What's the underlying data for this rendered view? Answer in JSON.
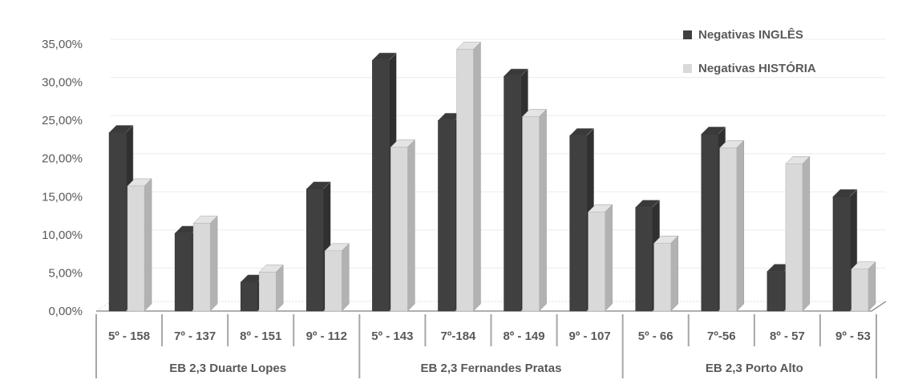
{
  "chart_data": {
    "type": "bar",
    "title": "",
    "xlabel": "",
    "ylabel": "",
    "ylim": [
      0,
      35
    ],
    "yticks": [
      "0,00%",
      "5,00%",
      "10,00%",
      "15,00%",
      "20,00%",
      "25,00%",
      "30,00%",
      "35,00%"
    ],
    "grid": true,
    "legend_position": "top-right",
    "categories": [
      "5º - 158",
      "7º - 137",
      "8º - 151",
      "9º - 112",
      "5º - 143",
      "7º-184",
      "8º - 149",
      "9º - 107",
      "5º - 66",
      "7º-56",
      "8º - 57",
      "9º - 53"
    ],
    "groups": [
      {
        "label": "EB 2,3 Duarte Lopes",
        "span": 4
      },
      {
        "label": "EB 2,3 Fernandes Pratas",
        "span": 4
      },
      {
        "label": "EB 2,3 Porto Alto",
        "span": 4
      }
    ],
    "series": [
      {
        "name": "Negativas INGLÊS",
        "color": "#404040",
        "values": [
          23.4,
          10.2,
          3.8,
          16.0,
          32.9,
          25.0,
          30.8,
          23.0,
          13.6,
          23.2,
          5.2,
          15.0
        ]
      },
      {
        "name": "Negativas HISTÓRIA",
        "color": "#d9d9d9",
        "values": [
          16.4,
          11.5,
          5.1,
          7.9,
          21.5,
          34.3,
          25.5,
          13.0,
          8.9,
          21.4,
          19.3,
          5.5
        ]
      }
    ]
  }
}
